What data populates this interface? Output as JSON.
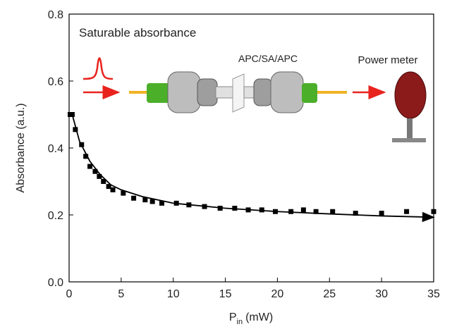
{
  "chart_data": {
    "type": "scatter",
    "ylabel": "Absorbance (a.u.)",
    "xlabel": {
      "main": "P",
      "sub": "in",
      "unit": "(mW)"
    },
    "annotations": {
      "title": "Saturable absorbance",
      "device": "APC/SA/APC",
      "meter": "Power meter"
    },
    "xlim": [
      0,
      35
    ],
    "xticks": [
      0,
      5,
      10,
      15,
      20,
      25,
      30,
      35
    ],
    "ylim": [
      0,
      0.8
    ],
    "yticks": [
      {
        "value": 0,
        "label": "0.0"
      },
      0.2,
      0.4,
      0.6,
      0.8
    ],
    "series": [
      {
        "kind": "points",
        "color": "#000000",
        "x": [
          0.1,
          0.3,
          0.6,
          1.2,
          1.6,
          2.0,
          2.5,
          2.9,
          3.3,
          3.8,
          4.2,
          5.2,
          6.2,
          7.3,
          8.0,
          8.9,
          10.3,
          11.5,
          13.0,
          14.5,
          15.9,
          17.2,
          18.5,
          19.8,
          21.3,
          22.5,
          23.7,
          25.3,
          27.5,
          30.0,
          32.4,
          35.0
        ],
        "values": [
          0.5,
          0.5,
          0.455,
          0.41,
          0.375,
          0.345,
          0.33,
          0.315,
          0.3,
          0.285,
          0.275,
          0.265,
          0.25,
          0.245,
          0.24,
          0.235,
          0.235,
          0.23,
          0.225,
          0.22,
          0.22,
          0.215,
          0.215,
          0.21,
          0.21,
          0.215,
          0.21,
          0.21,
          0.205,
          0.205,
          0.21,
          0.21
        ]
      },
      {
        "kind": "fit",
        "color": "#000000",
        "x": [
          0.3,
          1,
          2,
          3,
          4,
          5,
          7,
          10,
          15,
          20,
          25,
          30,
          35
        ],
        "values": [
          0.5,
          0.42,
          0.36,
          0.32,
          0.29,
          0.275,
          0.255,
          0.235,
          0.22,
          0.21,
          0.203,
          0.197,
          0.193
        ]
      }
    ]
  }
}
